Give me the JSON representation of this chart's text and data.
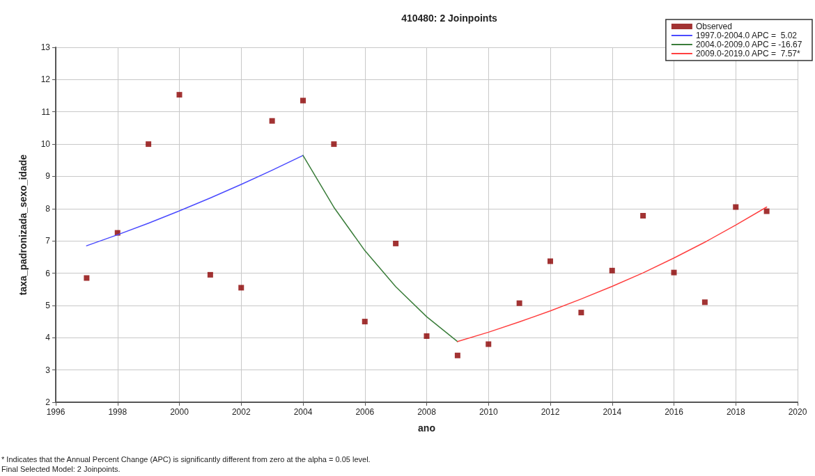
{
  "chart_data": {
    "type": "scatter",
    "title": "410480: 2 Joinpoints",
    "xlabel": "ano",
    "ylabel": "taxa_padronizada_sexo_idade",
    "series": [
      {
        "name": "Observed",
        "marker": "square",
        "color": "#8b0000",
        "x": [
          1997,
          1998,
          1999,
          2000,
          2001,
          2002,
          2003,
          2004,
          2005,
          2006,
          2007,
          2008,
          2009,
          2010,
          2011,
          2012,
          2013,
          2014,
          2015,
          2016,
          2017,
          2018,
          2019
        ],
        "values": [
          5.85,
          7.25,
          10.0,
          11.53,
          5.95,
          5.55,
          10.72,
          11.35,
          10.0,
          4.5,
          6.92,
          4.05,
          3.45,
          3.8,
          5.07,
          6.37,
          4.78,
          6.08,
          7.78,
          6.02,
          5.1,
          8.05,
          7.92
        ]
      },
      {
        "name": "1997.0-2004.0 APC =  5.02",
        "type": "line",
        "marker": "none",
        "color": "#4a4aff",
        "x": [
          1997,
          1998,
          1999,
          2000,
          2001,
          2002,
          2003,
          2004
        ],
        "values": [
          6.85,
          7.19,
          7.55,
          7.93,
          8.33,
          8.75,
          9.19,
          9.65
        ]
      },
      {
        "name": "2004.0-2009.0 APC = -16.67",
        "type": "line",
        "marker": "none",
        "color": "#3a7d3a",
        "x": [
          2004,
          2005,
          2006,
          2007,
          2008,
          2009
        ],
        "values": [
          9.65,
          8.04,
          6.7,
          5.58,
          4.65,
          3.88
        ]
      },
      {
        "name": "2009.0-2019.0 APC =  7.57*",
        "type": "line",
        "marker": "none",
        "color": "#ff4040",
        "x": [
          2009,
          2010,
          2011,
          2012,
          2013,
          2014,
          2015,
          2016,
          2017,
          2018,
          2019
        ],
        "values": [
          3.88,
          4.17,
          4.49,
          4.83,
          5.2,
          5.59,
          6.01,
          6.47,
          6.96,
          7.49,
          8.05
        ]
      }
    ],
    "xlim": [
      1996,
      2020
    ],
    "xticks": [
      1996,
      1998,
      2000,
      2002,
      2004,
      2006,
      2008,
      2010,
      2012,
      2014,
      2016,
      2018,
      2020
    ],
    "ylim": [
      2,
      13
    ],
    "yticks": [
      2,
      3,
      4,
      5,
      6,
      7,
      8,
      9,
      10,
      11,
      12,
      13
    ],
    "grid": true,
    "legend": "top right",
    "line_style": "solid",
    "annotations": [
      "* Indicates that the Annual Percent Change (APC) is significantly different from zero at the alpha = 0.05 level.",
      "Final Selected Model: 2 Joinpoints."
    ]
  }
}
